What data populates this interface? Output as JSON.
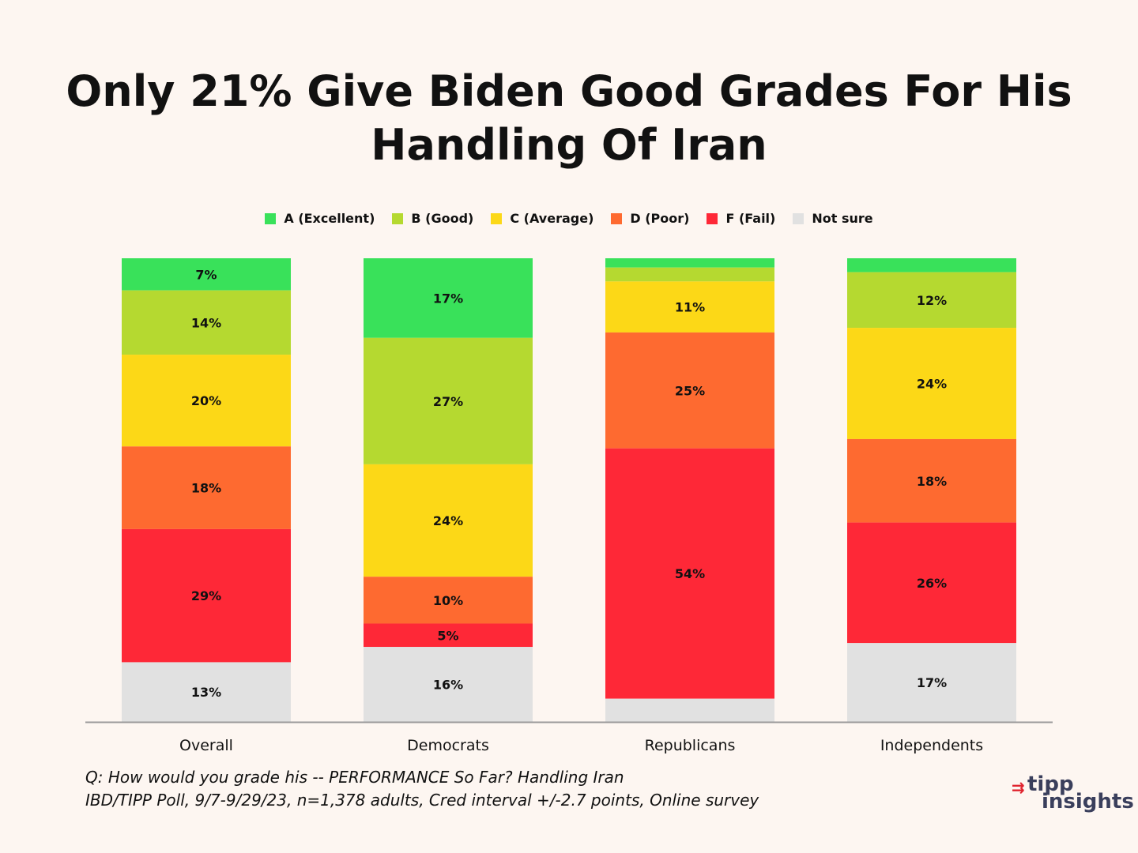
{
  "chart_data": {
    "type": "stacked-bar",
    "title": "Only 21% Give Biden Good Grades For His Handling Of Iran",
    "title_lines": [
      "Only 21% Give Biden Good Grades For His",
      "Handling Of Iran"
    ],
    "categories": [
      "Overall",
      "Democrats",
      "Republicans",
      "Independents"
    ],
    "series": [
      {
        "name": "A (Excellent)",
        "color": "#39e15a",
        "values": [
          7,
          17,
          2,
          3
        ],
        "labels": [
          "7%",
          "17%",
          "",
          ""
        ]
      },
      {
        "name": "B (Good)",
        "color": "#b5d930",
        "values": [
          14,
          27,
          3,
          12
        ],
        "labels": [
          "14%",
          "27%",
          "",
          "12%"
        ]
      },
      {
        "name": "C (Average)",
        "color": "#fcd817",
        "values": [
          20,
          24,
          11,
          24
        ],
        "labels": [
          "20%",
          "24%",
          "11%",
          "24%"
        ]
      },
      {
        "name": "D (Poor)",
        "color": "#fe6a30",
        "values": [
          18,
          10,
          25,
          18
        ],
        "labels": [
          "18%",
          "10%",
          "25%",
          "18%"
        ]
      },
      {
        "name": "F (Fail)",
        "color": "#fe2837",
        "values": [
          29,
          5,
          54,
          26
        ],
        "labels": [
          "29%",
          "5%",
          "54%",
          "26%"
        ]
      },
      {
        "name": "Not sure",
        "color": "#e1e1e1",
        "values": [
          13,
          16,
          5,
          17
        ],
        "labels": [
          "13%",
          "16%",
          "",
          "17%"
        ]
      }
    ],
    "ylim": [
      0,
      100
    ]
  },
  "footnote": {
    "line1": "Q:  How would you grade his -- PERFORMANCE So Far? Handling Iran",
    "line2": "IBD/TIPP Poll, 9/7-9/29/23, n=1,378 adults, Cred interval +/-2.7 points, Online survey"
  },
  "logo": {
    "word1": "tipp",
    "word2": "insights"
  }
}
